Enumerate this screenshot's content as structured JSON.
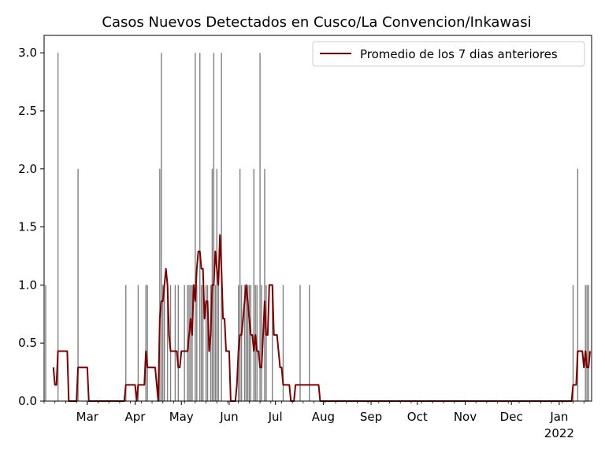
{
  "chart_data": {
    "type": "bar",
    "title": "Casos Nuevos Detectados en Cusco/La Convencion/Inkawasi",
    "xlabel": "",
    "ylabel": "",
    "x_range": [
      "2021-02-01",
      "2022-01-22"
    ],
    "ylim": [
      0,
      3.15
    ],
    "yticks": [
      0.0,
      0.5,
      1.0,
      1.5,
      2.0,
      2.5,
      3.0
    ],
    "ytick_labels": [
      "0.0",
      "0.5",
      "1.0",
      "1.5",
      "2.0",
      "2.5",
      "3.0"
    ],
    "xticks": [
      {
        "date": "2021-03-01",
        "label": "Mar",
        "sublabel": ""
      },
      {
        "date": "2021-04-01",
        "label": "Apr",
        "sublabel": ""
      },
      {
        "date": "2021-05-01",
        "label": "May",
        "sublabel": ""
      },
      {
        "date": "2021-06-01",
        "label": "Jun",
        "sublabel": ""
      },
      {
        "date": "2021-07-01",
        "label": "Jul",
        "sublabel": ""
      },
      {
        "date": "2021-08-01",
        "label": "Aug",
        "sublabel": ""
      },
      {
        "date": "2021-09-01",
        "label": "Sep",
        "sublabel": ""
      },
      {
        "date": "2021-10-01",
        "label": "Oct",
        "sublabel": ""
      },
      {
        "date": "2021-11-01",
        "label": "Nov",
        "sublabel": ""
      },
      {
        "date": "2021-12-01",
        "label": "Dec",
        "sublabel": ""
      },
      {
        "date": "2022-01-01",
        "label": "Jan",
        "sublabel": "2022"
      }
    ],
    "grid": false,
    "legend": {
      "placement": "top-right",
      "entries": [
        "Promedio de los 7 dias anteriores"
      ]
    },
    "colors": {
      "bars": "#808080",
      "line": "#800000"
    },
    "series": [
      {
        "kind": "bar",
        "dates": [
          "2021-02-02",
          "2021-02-10",
          "2021-02-23",
          "2021-03-26",
          "2021-04-03",
          "2021-04-08",
          "2021-04-09",
          "2021-04-17",
          "2021-04-18",
          "2021-04-19",
          "2021-04-20",
          "2021-04-22",
          "2021-04-24",
          "2021-04-27",
          "2021-04-29",
          "2021-05-03",
          "2021-05-05",
          "2021-05-06",
          "2021-05-07",
          "2021-05-08",
          "2021-05-10",
          "2021-05-11",
          "2021-05-13",
          "2021-05-14",
          "2021-05-15",
          "2021-05-17",
          "2021-05-18",
          "2021-05-20",
          "2021-05-21",
          "2021-05-22",
          "2021-05-23",
          "2021-05-24",
          "2021-05-25",
          "2021-05-27",
          "2021-06-07",
          "2021-06-08",
          "2021-06-09",
          "2021-06-11",
          "2021-06-12",
          "2021-06-13",
          "2021-06-14",
          "2021-06-15",
          "2021-06-17",
          "2021-06-18",
          "2021-06-19",
          "2021-06-21",
          "2021-06-22",
          "2021-06-24",
          "2021-06-25",
          "2021-06-29",
          "2021-07-06",
          "2021-07-17",
          "2021-07-23",
          "2022-01-10",
          "2022-01-13",
          "2022-01-18",
          "2022-01-19",
          "2022-01-20"
        ],
        "values": [
          1,
          3,
          2,
          1,
          1,
          1,
          1,
          2,
          3,
          1,
          1,
          1,
          1,
          1,
          1,
          1,
          1,
          1,
          1,
          1,
          3,
          1,
          3,
          1,
          1,
          1,
          1,
          1,
          2,
          3,
          1,
          2,
          1,
          3,
          1,
          2,
          1,
          1,
          1,
          1,
          1,
          1,
          2,
          1,
          1,
          3,
          1,
          2,
          1,
          1,
          1,
          1,
          1,
          1,
          2,
          1,
          1,
          1
        ]
      },
      {
        "kind": "line",
        "name": "Promedio de los 7 dias anteriores",
        "points": [
          [
            "2021-02-07",
            0.29
          ],
          [
            "2021-02-08",
            0.14
          ],
          [
            "2021-02-09",
            0.14
          ],
          [
            "2021-02-10",
            0.43
          ],
          [
            "2021-02-16",
            0.43
          ],
          [
            "2021-02-17",
            0.0
          ],
          [
            "2021-02-22",
            0.0
          ],
          [
            "2021-02-23",
            0.29
          ],
          [
            "2021-03-01",
            0.29
          ],
          [
            "2021-03-02",
            0.0
          ],
          [
            "2021-03-25",
            0.0
          ],
          [
            "2021-03-26",
            0.14
          ],
          [
            "2021-04-01",
            0.14
          ],
          [
            "2021-04-02",
            0.0
          ],
          [
            "2021-04-03",
            0.14
          ],
          [
            "2021-04-07",
            0.14
          ],
          [
            "2021-04-08",
            0.43
          ],
          [
            "2021-04-09",
            0.29
          ],
          [
            "2021-04-14",
            0.29
          ],
          [
            "2021-04-16",
            0.0
          ],
          [
            "2021-04-17",
            0.71
          ],
          [
            "2021-04-18",
            0.86
          ],
          [
            "2021-04-19",
            0.86
          ],
          [
            "2021-04-20",
            1.0
          ],
          [
            "2021-04-21",
            1.14
          ],
          [
            "2021-04-22",
            1.0
          ],
          [
            "2021-04-23",
            0.57
          ],
          [
            "2021-04-24",
            0.43
          ],
          [
            "2021-04-28",
            0.43
          ],
          [
            "2021-04-29",
            0.29
          ],
          [
            "2021-04-30",
            0.29
          ],
          [
            "2021-05-01",
            0.43
          ],
          [
            "2021-05-05",
            0.43
          ],
          [
            "2021-05-06",
            0.57
          ],
          [
            "2021-05-07",
            0.71
          ],
          [
            "2021-05-08",
            0.57
          ],
          [
            "2021-05-09",
            1.0
          ],
          [
            "2021-05-10",
            0.86
          ],
          [
            "2021-05-11",
            1.14
          ],
          [
            "2021-05-12",
            1.29
          ],
          [
            "2021-05-13",
            1.29
          ],
          [
            "2021-05-14",
            1.14
          ],
          [
            "2021-05-15",
            1.14
          ],
          [
            "2021-05-16",
            0.71
          ],
          [
            "2021-05-17",
            0.86
          ],
          [
            "2021-05-18",
            0.86
          ],
          [
            "2021-05-19",
            0.43
          ],
          [
            "2021-05-20",
            0.57
          ],
          [
            "2021-05-21",
            1.0
          ],
          [
            "2021-05-22",
            1.0
          ],
          [
            "2021-05-23",
            1.29
          ],
          [
            "2021-05-24",
            1.14
          ],
          [
            "2021-05-25",
            1.0
          ],
          [
            "2021-05-26",
            1.43
          ],
          [
            "2021-05-27",
            1.14
          ],
          [
            "2021-05-28",
            0.71
          ],
          [
            "2021-05-29",
            0.71
          ],
          [
            "2021-05-30",
            0.43
          ],
          [
            "2021-06-01",
            0.43
          ],
          [
            "2021-06-02",
            0.0
          ],
          [
            "2021-06-05",
            0.0
          ],
          [
            "2021-06-06",
            0.14
          ],
          [
            "2021-06-07",
            0.43
          ],
          [
            "2021-06-08",
            0.57
          ],
          [
            "2021-06-09",
            0.57
          ],
          [
            "2021-06-10",
            0.71
          ],
          [
            "2021-06-11",
            0.86
          ],
          [
            "2021-06-12",
            1.0
          ],
          [
            "2021-06-13",
            0.86
          ],
          [
            "2021-06-14",
            0.71
          ],
          [
            "2021-06-15",
            0.57
          ],
          [
            "2021-06-16",
            0.57
          ],
          [
            "2021-06-17",
            0.43
          ],
          [
            "2021-06-18",
            0.57
          ],
          [
            "2021-06-19",
            0.43
          ],
          [
            "2021-06-20",
            0.43
          ],
          [
            "2021-06-21",
            0.29
          ],
          [
            "2021-06-22",
            0.29
          ],
          [
            "2021-06-23",
            0.57
          ],
          [
            "2021-06-24",
            0.86
          ],
          [
            "2021-06-25",
            0.57
          ],
          [
            "2021-06-26",
            0.57
          ],
          [
            "2021-06-27",
            1.0
          ],
          [
            "2021-06-29",
            1.0
          ],
          [
            "2021-06-30",
            0.57
          ],
          [
            "2021-07-02",
            0.57
          ],
          [
            "2021-07-03",
            0.43
          ],
          [
            "2021-07-04",
            0.29
          ],
          [
            "2021-07-05",
            0.29
          ],
          [
            "2021-07-06",
            0.14
          ],
          [
            "2021-07-10",
            0.14
          ],
          [
            "2021-07-11",
            0.0
          ],
          [
            "2021-07-13",
            0.0
          ],
          [
            "2021-07-14",
            0.14
          ],
          [
            "2021-07-29",
            0.14
          ],
          [
            "2021-07-30",
            0.0
          ],
          [
            "2022-01-08",
            0.0
          ],
          [
            "2022-01-09",
            0.0
          ],
          [
            "2022-01-10",
            0.14
          ],
          [
            "2022-01-12",
            0.14
          ],
          [
            "2022-01-13",
            0.43
          ],
          [
            "2022-01-16",
            0.43
          ],
          [
            "2022-01-17",
            0.29
          ],
          [
            "2022-01-18",
            0.43
          ],
          [
            "2022-01-19",
            0.29
          ],
          [
            "2022-01-20",
            0.29
          ],
          [
            "2022-01-21",
            0.43
          ]
        ]
      }
    ]
  }
}
